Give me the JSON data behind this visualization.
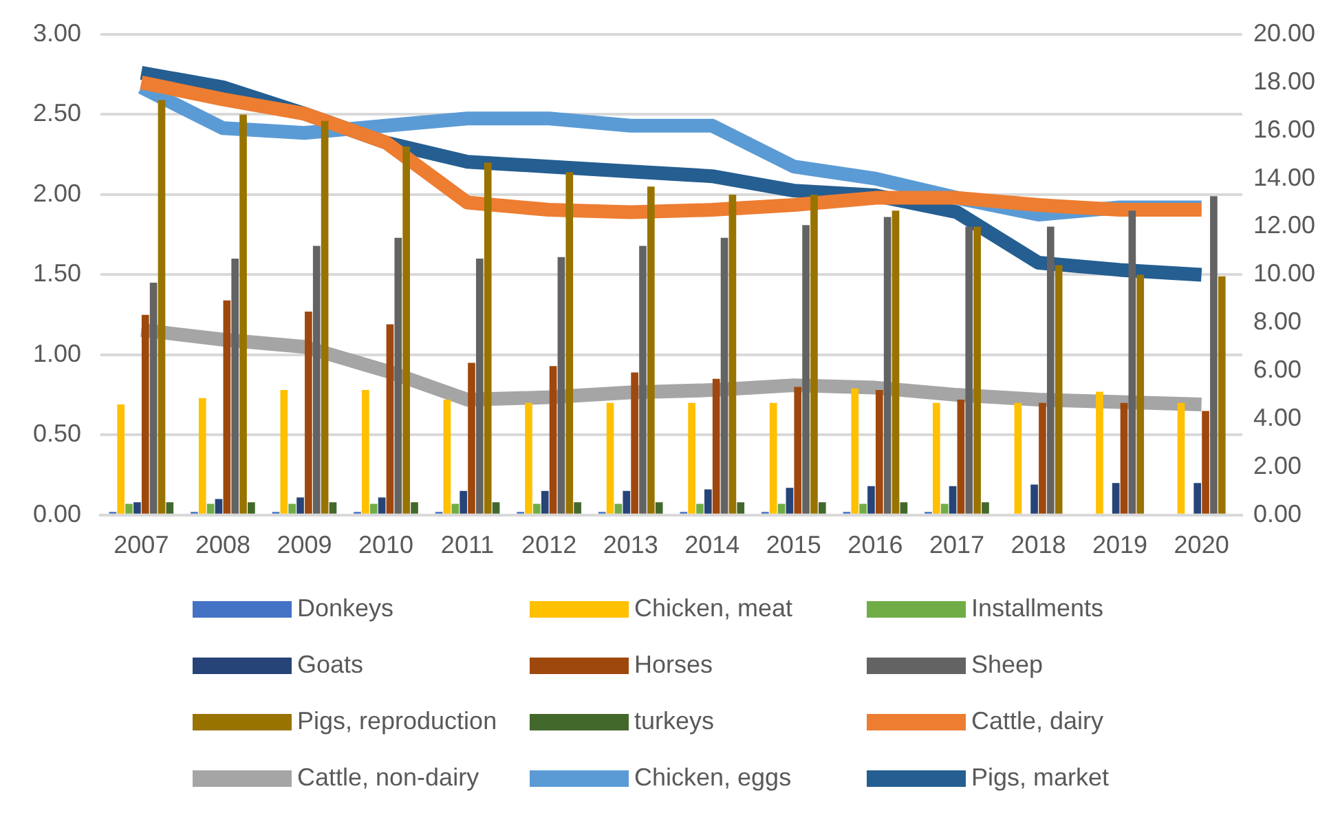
{
  "chart_data": {
    "type": "bar",
    "categories": [
      "2007",
      "2008",
      "2009",
      "2010",
      "2011",
      "2012",
      "2013",
      "2014",
      "2015",
      "2016",
      "2017",
      "2018",
      "2019",
      "2020"
    ],
    "series": [
      {
        "name": "Donkeys",
        "color": "#4472c4",
        "values": [
          0.02,
          0.02,
          0.02,
          0.02,
          0.02,
          0.02,
          0.02,
          0.02,
          0.02,
          0.02,
          0.02,
          null,
          null,
          null
        ]
      },
      {
        "name": "Chicken, meat",
        "color": "#ffc000",
        "values": [
          0.69,
          0.73,
          0.78,
          0.78,
          0.72,
          0.7,
          0.7,
          0.7,
          0.7,
          0.79,
          0.7,
          0.7,
          0.77,
          0.7
        ]
      },
      {
        "name": "Installments",
        "color": "#70ad47",
        "values": [
          0.07,
          0.07,
          0.07,
          0.07,
          0.07,
          0.07,
          0.07,
          0.07,
          0.07,
          0.07,
          0.07,
          null,
          null,
          null
        ]
      },
      {
        "name": "Goats",
        "color": "#264478",
        "values": [
          0.08,
          0.1,
          0.11,
          0.11,
          0.15,
          0.15,
          0.15,
          0.16,
          0.17,
          0.18,
          0.18,
          0.19,
          0.2,
          0.2
        ]
      },
      {
        "name": "Horses",
        "color": "#9e480e",
        "values": [
          1.25,
          1.34,
          1.27,
          1.19,
          0.95,
          0.93,
          0.89,
          0.85,
          0.8,
          0.78,
          0.72,
          0.7,
          0.7,
          0.65
        ]
      },
      {
        "name": "Sheep",
        "color": "#636363",
        "values": [
          1.45,
          1.6,
          1.68,
          1.73,
          1.6,
          1.61,
          1.68,
          1.73,
          1.81,
          1.86,
          1.8,
          1.8,
          1.9,
          1.99
        ]
      },
      {
        "name": "Pigs, reproduction",
        "color": "#997300",
        "values": [
          2.59,
          2.5,
          2.46,
          2.3,
          2.2,
          2.14,
          2.05,
          2.0,
          2.0,
          1.9,
          1.8,
          1.56,
          1.5,
          1.49
        ]
      },
      {
        "name": "turkeys",
        "color": "#43682b",
        "values": [
          0.08,
          0.08,
          0.08,
          0.08,
          0.08,
          0.08,
          0.08,
          0.08,
          0.08,
          0.08,
          0.08,
          null,
          null,
          null
        ]
      },
      {
        "name": "Cattle, dairy",
        "color": "#ed7d31",
        "type": "line",
        "axis": "y2",
        "values": [
          18,
          17.3,
          16.7,
          15.5,
          13,
          12.7,
          12.6,
          12.7,
          12.9,
          13.2,
          13.2,
          12.9,
          12.7,
          12.7
        ]
      },
      {
        "name": "Cattle, non-dairy",
        "color": "#a5a5a5",
        "type": "line",
        "axis": "y2",
        "values": [
          7.7,
          7.3,
          7,
          6,
          4.8,
          4.9,
          5.1,
          5.2,
          5.4,
          5.3,
          5,
          4.8,
          4.7,
          4.6
        ]
      },
      {
        "name": "Chicken, eggs",
        "color": "#5b9bd5",
        "type": "line",
        "axis": "y2",
        "values": [
          17.8,
          16.1,
          15.9,
          16.2,
          16.5,
          16.5,
          16.2,
          16.2,
          14.5,
          14,
          13.2,
          12.5,
          12.8,
          12.8
        ]
      },
      {
        "name": "Pigs, market",
        "color": "#255e91",
        "type": "line",
        "axis": "y2",
        "values": [
          18.4,
          17.8,
          16.7,
          15.5,
          14.7,
          14.5,
          14.3,
          14.1,
          13.5,
          13.3,
          12.6,
          10.5,
          10.2,
          10
        ]
      }
    ],
    "ylim": [
      0,
      3
    ],
    "yticks": [
      {
        "value": 0,
        "label": "0.00"
      },
      {
        "value": 0.5,
        "label": "0.50"
      },
      {
        "value": 1,
        "label": "1.00"
      },
      {
        "value": 1.5,
        "label": "1.50"
      },
      {
        "value": 2,
        "label": "2.00"
      },
      {
        "value": 2.5,
        "label": "2.50"
      },
      {
        "value": 3,
        "label": "3.00"
      }
    ],
    "y2lim": [
      0,
      20
    ],
    "y2ticks": [
      {
        "value": 0,
        "label": "0.00"
      },
      {
        "value": 2,
        "label": "2.00"
      },
      {
        "value": 4,
        "label": "4.00"
      },
      {
        "value": 6,
        "label": "6.00"
      },
      {
        "value": 8,
        "label": "8.00"
      },
      {
        "value": 10,
        "label": "10.00"
      },
      {
        "value": 12,
        "label": "12.00"
      },
      {
        "value": 14,
        "label": "14.00"
      },
      {
        "value": 16,
        "label": "16.00"
      },
      {
        "value": 18,
        "label": "18.00"
      },
      {
        "value": 20,
        "label": "20.00"
      }
    ],
    "grid": "y",
    "legend": "bottom",
    "marker": "none",
    "line_style": "solid"
  }
}
